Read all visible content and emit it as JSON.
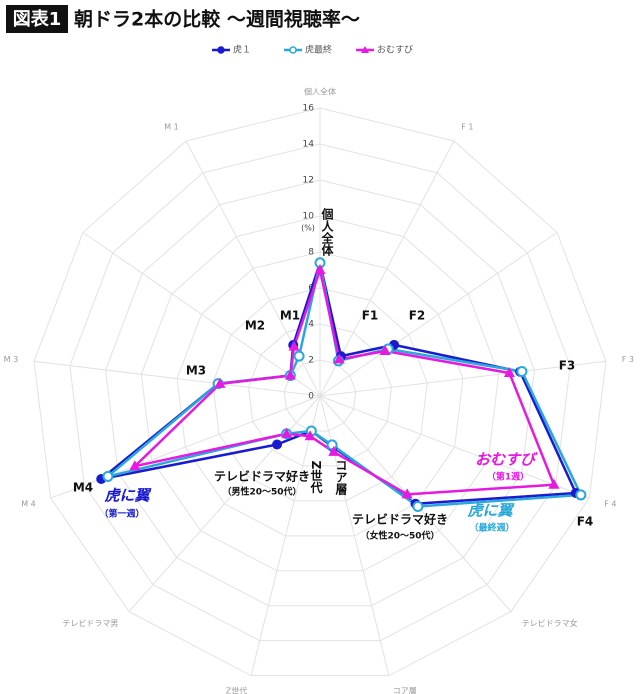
{
  "chart_data": {
    "type": "radar",
    "title_badge": "図表1",
    "title": "朝ドラ2本の比較 〜週間視聴率〜",
    "categories": [
      "個人全体",
      "F 1",
      null,
      "F 3",
      "F 4",
      "テレビドラマ女",
      "コア層",
      "Z世代",
      "テレビドラマ男",
      "M 4",
      "M 3",
      null,
      "M 1"
    ],
    "rlim": [
      0,
      16
    ],
    "rticks": [
      0,
      2,
      4,
      6,
      8,
      10,
      12,
      14,
      16
    ],
    "unit_label": "(%)",
    "grid": true,
    "legend": "top",
    "series": [
      {
        "name": "虎１",
        "color": "#1a1ad0",
        "marker": "circle",
        "values": [
          7.4,
          2.5,
          5.0,
          11.2,
          15.2,
          8.0,
          2.9,
          2.0,
          3.6,
          13.0,
          5.7,
          2.0,
          3.2
        ]
      },
      {
        "name": "虎最終",
        "color": "#2aa8dc",
        "marker": "open-circle",
        "values": [
          7.4,
          2.2,
          4.6,
          11.3,
          15.5,
          8.2,
          2.8,
          2.0,
          2.8,
          12.6,
          5.7,
          2.0,
          2.5
        ]
      },
      {
        "name": "おむすび",
        "color": "#e619e0",
        "marker": "triangle",
        "values": [
          7.0,
          2.3,
          4.4,
          10.6,
          13.9,
          7.3,
          3.2,
          2.3,
          2.8,
          11.0,
          5.6,
          2.0,
          3.1
        ]
      }
    ],
    "annotations": [
      {
        "text": "個人全体"
      },
      {
        "text": "F1"
      },
      {
        "text": "F2"
      },
      {
        "text": "F3"
      },
      {
        "text": "F4"
      },
      {
        "text": "M1"
      },
      {
        "text": "M2"
      },
      {
        "text": "M3"
      },
      {
        "text": "M4"
      },
      {
        "text": "テレビドラマ好き"
      },
      {
        "text": "（女性20〜50代）"
      },
      {
        "text": "コア層"
      },
      {
        "text": "Z世代"
      },
      {
        "text": "テレビドラマ好き"
      },
      {
        "text": "（男性20〜50代）"
      },
      {
        "text": "おむすび",
        "color": "#e619e0"
      },
      {
        "text": "（第1週）",
        "color": "#e619e0"
      },
      {
        "text": "虎に翼",
        "color": "#2aa8dc"
      },
      {
        "text": "（最終週）",
        "color": "#2aa8dc"
      },
      {
        "text": "虎に翼",
        "color": "#1a1ad0"
      },
      {
        "text": "（第一週）",
        "color": "#1a1ad0"
      }
    ]
  }
}
